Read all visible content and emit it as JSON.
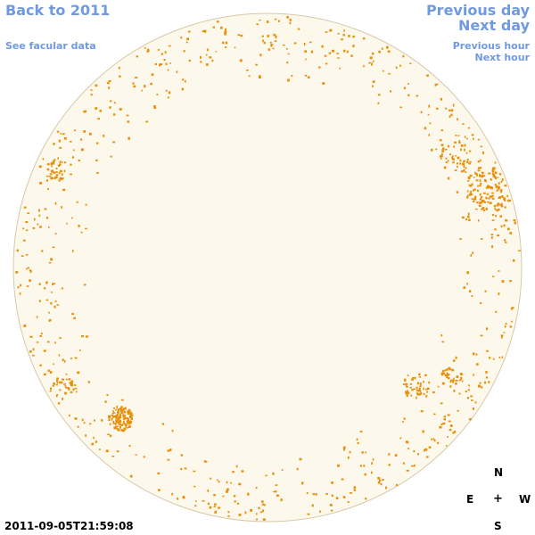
{
  "nav": {
    "back_label": "Back to 2011",
    "facular_label": "See facular data",
    "prev_day_label": "Previous day",
    "next_day_label": "Next day",
    "prev_hour_label": "Previous hour",
    "next_hour_label": "Next hour"
  },
  "compass": {
    "north": "N",
    "south": "S",
    "east": "E",
    "west": "W",
    "center": "+"
  },
  "timestamp": "2011-09-05T21:59:08",
  "colors": {
    "link": "#6f9ae2",
    "disk_fill": "#fdf8ec",
    "disk_outline": "#d9c8a8",
    "facula": "#e8900a"
  }
}
